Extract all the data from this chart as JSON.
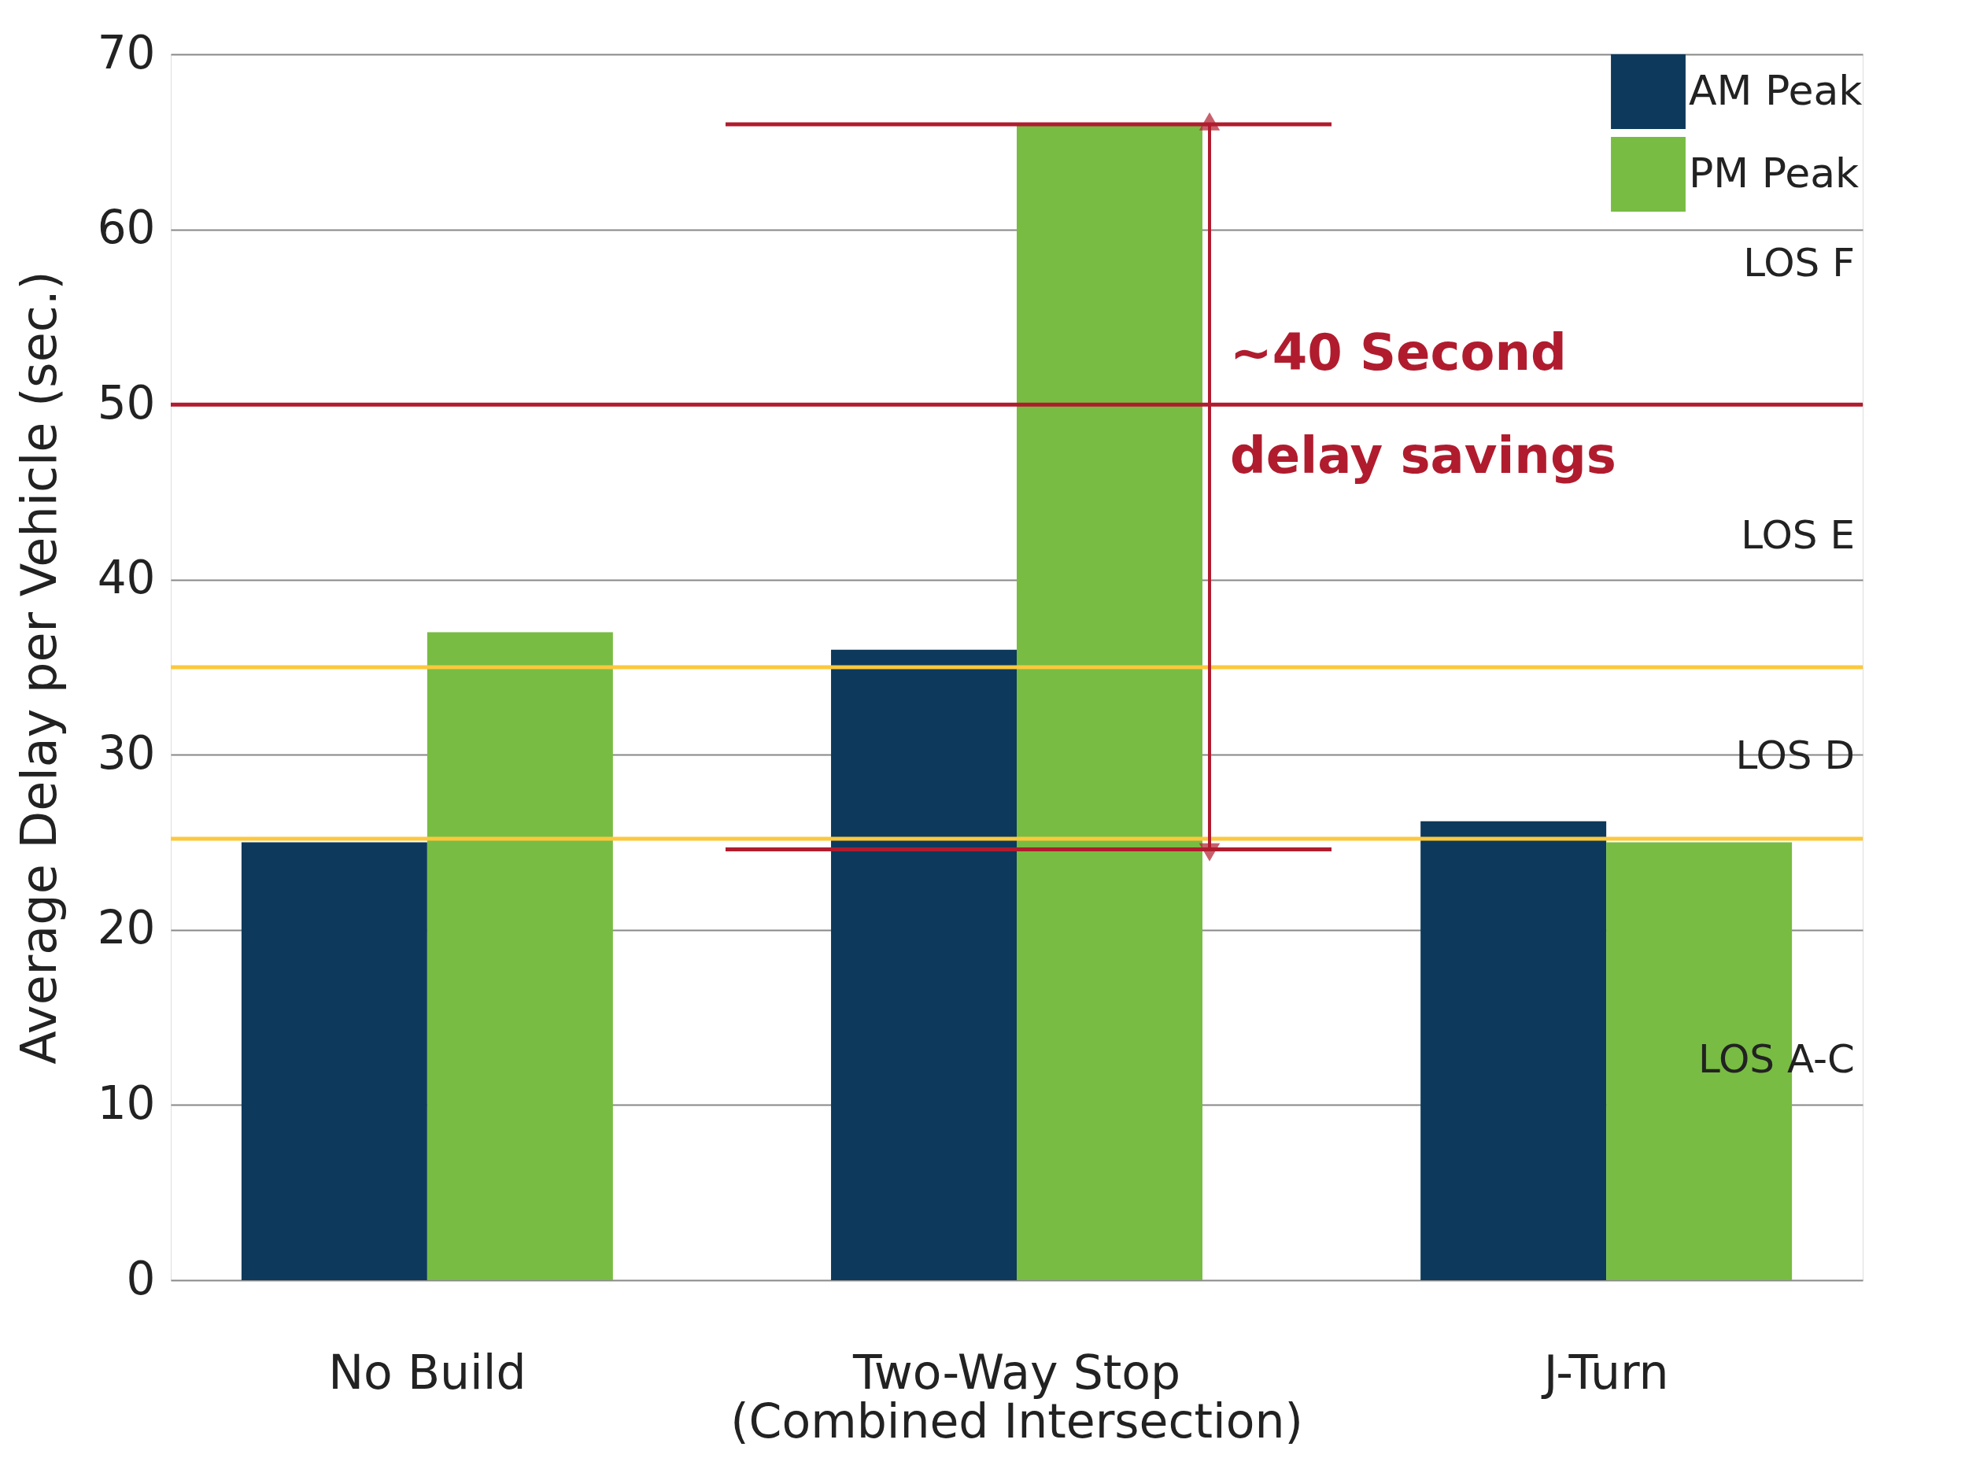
{
  "chart_data": {
    "type": "bar",
    "ylabel": "Average Delay per Vehicle (sec.)",
    "categories": [
      "No Build",
      "Two-Way Stop\n(Combined Intersection)",
      "J-Turn"
    ],
    "series": [
      {
        "name": "AM Peak",
        "color": "#0d3a5c",
        "values": [
          25,
          36,
          26.2
        ]
      },
      {
        "name": "PM Peak",
        "color": "#78bc43",
        "values": [
          37,
          66,
          25
        ]
      }
    ],
    "ylim": [
      0,
      70
    ],
    "yticks": [
      0,
      10,
      20,
      30,
      40,
      50,
      60,
      70
    ],
    "grid": "y",
    "legend": "top right",
    "ref_lines": [
      {
        "axis": "y",
        "value": 50,
        "color": "#b01c2e"
      },
      {
        "axis": "y",
        "value": 35,
        "color": "#fcc83c"
      },
      {
        "axis": "y",
        "value": 25.2,
        "color": "#fcc83c"
      },
      {
        "axis": "y",
        "value": 66,
        "color": "#b01c2e"
      },
      {
        "axis": "y",
        "value": 24.6,
        "color": "#b01c2e"
      }
    ],
    "annotations": [
      "~40 Second\ndelay savings",
      "LOS F",
      "LOS E",
      "LOS D",
      "LOS A-C"
    ]
  }
}
